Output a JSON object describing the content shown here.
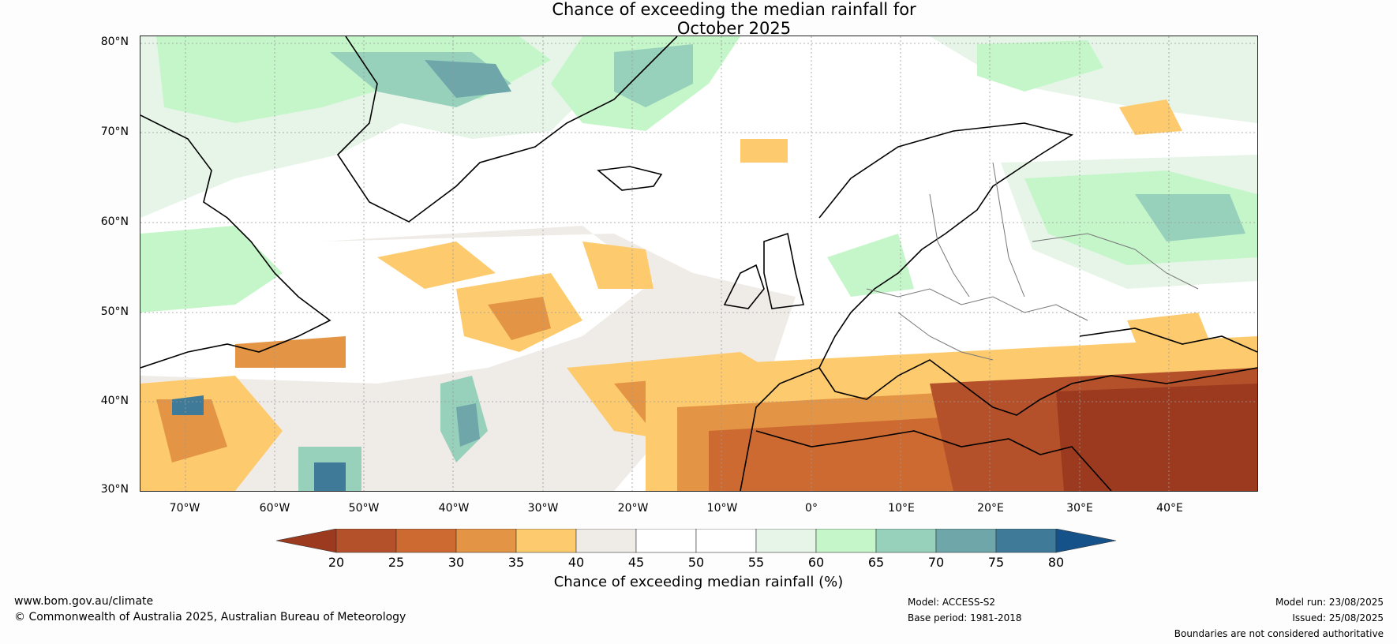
{
  "title": {
    "line1": "Chance of exceeding the median rainfall for",
    "line2": "October 2025"
  },
  "axes": {
    "latitudes": [
      "80°N",
      "70°N",
      "60°N",
      "50°N",
      "40°N",
      "30°N"
    ],
    "longitudes": [
      "70°W",
      "60°W",
      "50°W",
      "40°W",
      "30°W",
      "20°W",
      "10°W",
      "0°",
      "10°E",
      "20°E",
      "30°E",
      "40°E"
    ]
  },
  "colorbar": {
    "title": "Chance of exceeding median rainfall (%)",
    "ticks": [
      "20",
      "25",
      "30",
      "35",
      "40",
      "45",
      "50",
      "55",
      "60",
      "65",
      "70",
      "75",
      "80"
    ],
    "colors": [
      "#9b3a1f",
      "#b4502a",
      "#cd6a32",
      "#e39444",
      "#fdcb6e",
      "#efebe7",
      "#ffffff",
      "#ffffff",
      "#e6f5e8",
      "#c5f6c9",
      "#97d1bc",
      "#6fa6aa",
      "#3f7b98",
      "#145289"
    ]
  },
  "footer": {
    "website": "www.bom.gov.au/climate",
    "copyright": "© Commonwealth of Australia 2025, Australian Bureau of Meteorology",
    "model": "Model: ACCESS-S2",
    "base_period": "Base period: 1981-2018",
    "model_run": "Model run: 23/08/2025",
    "issued": "Issued: 25/08/2025",
    "disclaimer": "Boundaries are not considered authoritative"
  }
}
